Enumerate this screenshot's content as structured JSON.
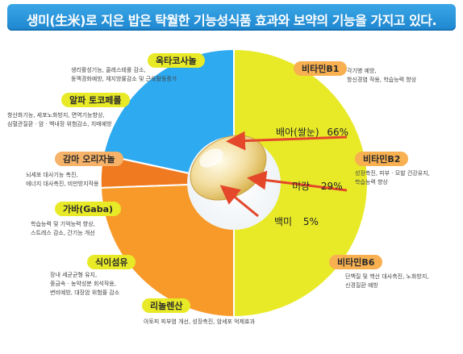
{
  "title": "생미(生米)로 지은 밥은 탁월한 기능성식품 효과와 보약의 기능을 가지고 있다.",
  "colors": {
    "blue": "#2eaaf0",
    "orange": "#f79a2a",
    "dark_orange": "#f07a20",
    "yellow": "#e8ea28",
    "banner": "#2a96dc"
  },
  "left": [
    {
      "label": "옥타코사놀",
      "desc": [
        "생리활성기능, 콜레스테롤 감소,",
        "동맥경화예방, 체지방률감소 및 근육활동증가"
      ]
    },
    {
      "label": "알파 토코페롤",
      "desc": [
        "항산화기능, 세포노화방지, 면역기능향상,",
        "심혈관질환 · 암 · 백내장 위험감소, 치매예방"
      ]
    },
    {
      "label": "감마 오리자놀",
      "desc": [
        "뇌세포 대사기능 촉진,",
        "에너지 대사촉진, 비만방지작용"
      ]
    },
    {
      "label": "가바(Gaba)",
      "desc": [
        "학습능력 및 기억능력 향상,",
        "스트레스 감소, 간기능 개선"
      ]
    },
    {
      "label": "식이섬유",
      "desc": [
        "장내 세균균형 유지,",
        "중금속 · 농약성분 회석작용,",
        "변비예방, 대장암 위험률 감소"
      ]
    },
    {
      "label": "리놀렌산",
      "desc": [
        "아토피 피부염 개선, 성장촉진, 암세포 억제효과"
      ]
    }
  ],
  "right": [
    {
      "label": "비타민B1",
      "desc": [
        "각기병 예방,",
        "항신경염 작용, 학습능력 향상"
      ]
    },
    {
      "label": "비타민B2",
      "desc": [
        "성장촉진, 피부 · 모발 건강유지,",
        "학습능력 향상"
      ]
    },
    {
      "label": "비타민B6",
      "desc": [
        "단백질 및 핵산 대사촉진, 노화방지,",
        "신경질환 예방"
      ]
    }
  ],
  "parts": [
    {
      "label": "배아(쌀눈)",
      "value": "66%"
    },
    {
      "label": "미강",
      "value": "29%"
    },
    {
      "label": "백미",
      "value": "5%"
    }
  ]
}
